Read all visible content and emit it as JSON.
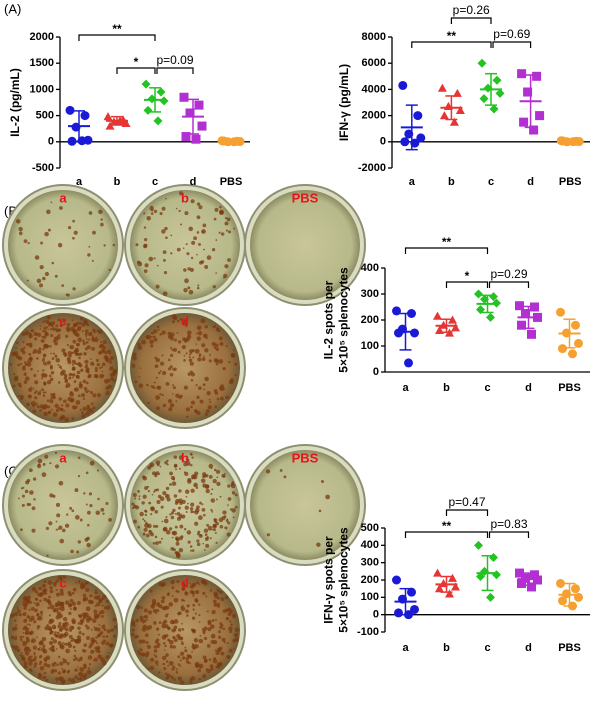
{
  "panels": [
    {
      "label": "(A)"
    },
    {
      "label": "(B)",
      "wells": [
        "a",
        "b",
        "PBS",
        "c",
        "d"
      ]
    },
    {
      "label": "(C)",
      "wells": [
        "a",
        "b",
        "PBS",
        "c",
        "d"
      ]
    }
  ],
  "chart_data": [
    {
      "type": "scatter",
      "ylabel": [
        "IL-2 (pg/mL)"
      ],
      "categories": [
        "a",
        "b",
        "c",
        "d",
        "PBS"
      ],
      "colors": [
        "#1a1ad6",
        "#e53535",
        "#22c322",
        "#b22fd2",
        "#f5a031"
      ],
      "points": [
        [
          600,
          500,
          280,
          30,
          10,
          20
        ],
        [
          480,
          420,
          380,
          350,
          300,
          400
        ],
        [
          1100,
          950,
          820,
          780,
          600,
          400
        ],
        [
          850,
          700,
          550,
          300,
          100,
          50
        ],
        [
          20,
          10,
          0,
          5,
          15,
          0
        ]
      ],
      "means": [
        300,
        400,
        800,
        480,
        10
      ],
      "sd": [
        290,
        80,
        230,
        330,
        10
      ],
      "ylim": [
        -500,
        2000
      ],
      "yticks": [
        -500,
        0,
        500,
        1000,
        1500,
        2000
      ],
      "annotations": [
        {
          "text": "**",
          "from": 0,
          "to": 2
        },
        {
          "text": "*",
          "from": 1,
          "to": 2
        },
        {
          "text": "p=0.09",
          "from": 2,
          "to": 3
        }
      ]
    },
    {
      "type": "scatter",
      "ylabel": [
        "IFN-γ (pg/mL)"
      ],
      "categories": [
        "a",
        "b",
        "c",
        "d",
        "PBS"
      ],
      "colors": [
        "#1a1ad6",
        "#e53535",
        "#22c322",
        "#b22fd2",
        "#f5a031"
      ],
      "points": [
        [
          4300,
          2000,
          600,
          300,
          0,
          -100
        ],
        [
          4100,
          3700,
          2700,
          2400,
          2000,
          1500
        ],
        [
          6000,
          4700,
          4100,
          3700,
          3300,
          2500
        ],
        [
          5200,
          5000,
          3800,
          2000,
          1500,
          900
        ],
        [
          80,
          40,
          0,
          20,
          60,
          10
        ]
      ],
      "means": [
        1100,
        2600,
        4000,
        3100,
        40
      ],
      "sd": [
        1700,
        900,
        1200,
        2000,
        30
      ],
      "ylim": [
        -2000,
        8000
      ],
      "yticks": [
        -2000,
        0,
        2000,
        4000,
        6000,
        8000
      ],
      "annotations": [
        {
          "text": "p=0.26",
          "from": 1,
          "to": 2
        },
        {
          "text": "**",
          "from": 0,
          "to": 2
        },
        {
          "text": "p=0.69",
          "from": 2,
          "to": 3
        }
      ]
    },
    {
      "type": "scatter",
      "ylabel": [
        "IL-2 spots per",
        "5×10⁵ splenocytes"
      ],
      "categories": [
        "a",
        "b",
        "c",
        "d",
        "PBS"
      ],
      "colors": [
        "#1a1ad6",
        "#e53535",
        "#22c322",
        "#b22fd2",
        "#f5a031"
      ],
      "points": [
        [
          235,
          225,
          165,
          150,
          150,
          35
        ],
        [
          215,
          200,
          180,
          170,
          160,
          150
        ],
        [
          300,
          290,
          280,
          265,
          240,
          210
        ],
        [
          255,
          250,
          225,
          210,
          180,
          145
        ],
        [
          230,
          180,
          150,
          110,
          90,
          70
        ]
      ],
      "means": [
        155,
        178,
        262,
        210,
        148
      ],
      "sd": [
        70,
        25,
        33,
        42,
        55
      ],
      "ylim": [
        0,
        400
      ],
      "yticks": [
        0,
        100,
        200,
        300,
        400
      ],
      "annotations": [
        {
          "text": "**",
          "from": 0,
          "to": 2
        },
        {
          "text": "*",
          "from": 1,
          "to": 2
        },
        {
          "text": "p=0.29",
          "from": 2,
          "to": 3
        }
      ]
    },
    {
      "type": "scatter",
      "ylabel": [
        "IFN-γ spots per",
        "5×10⁵ splenocytes"
      ],
      "categories": [
        "a",
        "b",
        "c",
        "d",
        "PBS"
      ],
      "colors": [
        "#1a1ad6",
        "#e53535",
        "#22c322",
        "#b22fd2",
        "#f5a031"
      ],
      "points": [
        [
          200,
          130,
          90,
          30,
          10,
          0
        ],
        [
          240,
          210,
          180,
          160,
          150,
          120
        ],
        [
          400,
          330,
          250,
          230,
          220,
          100
        ],
        [
          240,
          230,
          210,
          200,
          180,
          160
        ],
        [
          180,
          150,
          120,
          100,
          80,
          50
        ]
      ],
      "means": [
        75,
        175,
        240,
        205,
        115
      ],
      "sd": [
        75,
        45,
        100,
        35,
        65
      ],
      "ylim": [
        -100,
        500
      ],
      "yticks": [
        -100,
        0,
        100,
        200,
        300,
        400,
        500
      ],
      "annotations": [
        {
          "text": "p=0.47",
          "from": 1,
          "to": 2
        },
        {
          "text": "**",
          "from": 0,
          "to": 2
        },
        {
          "text": "p=0.83",
          "from": 2,
          "to": 3
        }
      ]
    }
  ]
}
